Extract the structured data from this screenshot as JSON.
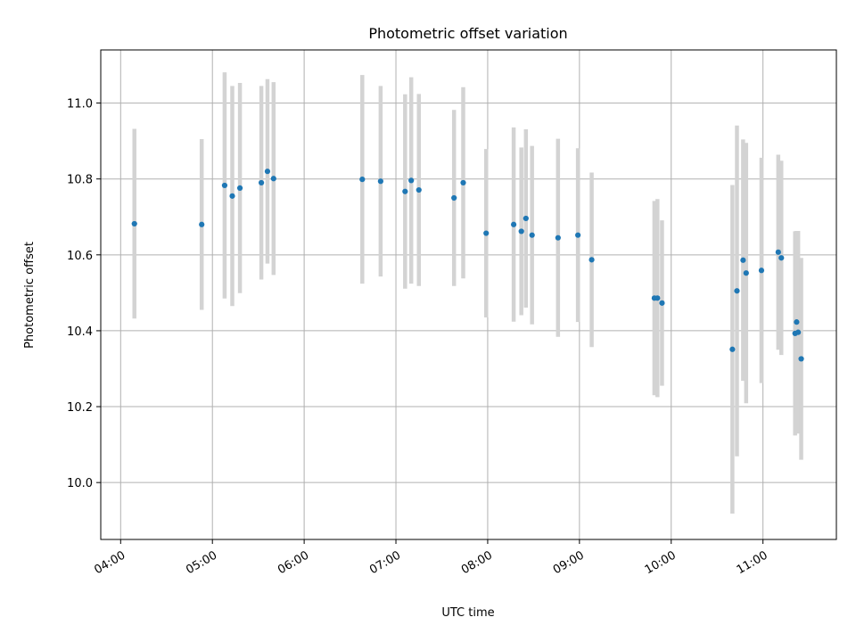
{
  "chart_data": {
    "type": "scatter",
    "title": "Photometric offset variation",
    "xlabel": "UTC time",
    "ylabel": "Photometric offset",
    "x_tick_labels": [
      "04:00",
      "05:00",
      "06:00",
      "07:00",
      "08:00",
      "09:00",
      "10:00",
      "11:00"
    ],
    "y_tick_labels": [
      "10.0",
      "10.2",
      "10.4",
      "10.6",
      "10.8",
      "11.0"
    ],
    "xlim": [
      "03:47",
      "11:48"
    ],
    "ylim": [
      9.85,
      11.14
    ],
    "grid": true,
    "legend": "none",
    "x_axis_type": "time",
    "error_bars": "symmetric",
    "colors": {
      "point": "#1f77b4",
      "error_bar": "#d3d3d3",
      "grid": "#b0b0b0"
    },
    "points": [
      {
        "x": "04:09",
        "y": 10.682,
        "err": 0.25
      },
      {
        "x": "04:53",
        "y": 10.68,
        "err": 0.225
      },
      {
        "x": "05:08",
        "y": 10.783,
        "err": 0.298
      },
      {
        "x": "05:13",
        "y": 10.755,
        "err": 0.29
      },
      {
        "x": "05:18",
        "y": 10.776,
        "err": 0.277
      },
      {
        "x": "05:32",
        "y": 10.79,
        "err": 0.255
      },
      {
        "x": "05:36",
        "y": 10.82,
        "err": 0.243
      },
      {
        "x": "05:40",
        "y": 10.801,
        "err": 0.254
      },
      {
        "x": "06:38",
        "y": 10.799,
        "err": 0.275
      },
      {
        "x": "06:50",
        "y": 10.794,
        "err": 0.251
      },
      {
        "x": "07:06",
        "y": 10.767,
        "err": 0.256
      },
      {
        "x": "07:10",
        "y": 10.796,
        "err": 0.272
      },
      {
        "x": "07:15",
        "y": 10.771,
        "err": 0.253
      },
      {
        "x": "07:38",
        "y": 10.75,
        "err": 0.232
      },
      {
        "x": "07:44",
        "y": 10.79,
        "err": 0.252
      },
      {
        "x": "07:59",
        "y": 10.657,
        "err": 0.222
      },
      {
        "x": "08:17",
        "y": 10.68,
        "err": 0.256
      },
      {
        "x": "08:22",
        "y": 10.662,
        "err": 0.221
      },
      {
        "x": "08:25",
        "y": 10.696,
        "err": 0.235
      },
      {
        "x": "08:29",
        "y": 10.652,
        "err": 0.235
      },
      {
        "x": "08:46",
        "y": 10.645,
        "err": 0.261
      },
      {
        "x": "08:59",
        "y": 10.652,
        "err": 0.229
      },
      {
        "x": "09:08",
        "y": 10.587,
        "err": 0.23
      },
      {
        "x": "09:49",
        "y": 10.486,
        "err": 0.256
      },
      {
        "x": "09:51",
        "y": 10.486,
        "err": 0.261
      },
      {
        "x": "09:54",
        "y": 10.473,
        "err": 0.218
      },
      {
        "x": "10:40",
        "y": 10.351,
        "err": 0.433
      },
      {
        "x": "10:43",
        "y": 10.505,
        "err": 0.436
      },
      {
        "x": "10:47",
        "y": 10.586,
        "err": 0.318
      },
      {
        "x": "10:49",
        "y": 10.552,
        "err": 0.343
      },
      {
        "x": "10:59",
        "y": 10.559,
        "err": 0.297
      },
      {
        "x": "11:10",
        "y": 10.607,
        "err": 0.257
      },
      {
        "x": "11:12",
        "y": 10.592,
        "err": 0.256
      },
      {
        "x": "11:21",
        "y": 10.393,
        "err": 0.269
      },
      {
        "x": "11:22",
        "y": 10.423,
        "err": 0.24
      },
      {
        "x": "11:23",
        "y": 10.396,
        "err": 0.267
      },
      {
        "x": "11:25",
        "y": 10.326,
        "err": 0.266
      }
    ]
  }
}
